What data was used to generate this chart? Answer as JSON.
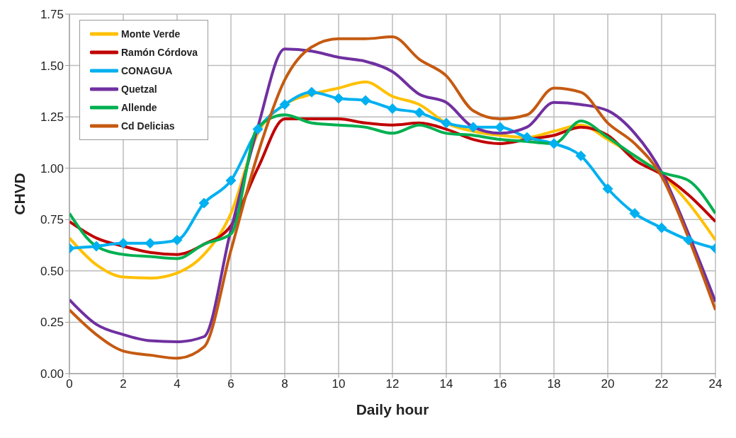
{
  "chart_data": {
    "type": "line",
    "xlabel": "Daily hour",
    "ylabel": "CHVD",
    "x": [
      0,
      1,
      2,
      3,
      4,
      5,
      6,
      7,
      8,
      9,
      10,
      11,
      12,
      13,
      14,
      15,
      16,
      17,
      18,
      19,
      20,
      21,
      22,
      23,
      24
    ],
    "xlim": [
      0,
      24
    ],
    "xticks": [
      0,
      2,
      4,
      6,
      8,
      10,
      12,
      14,
      16,
      18,
      20,
      22,
      24
    ],
    "ylim": [
      0,
      1.75
    ],
    "yticks": [
      {
        "value": 0,
        "label": "0.00"
      },
      {
        "value": 0.25,
        "label": "0.25"
      },
      {
        "value": 0.5,
        "label": "0.50"
      },
      {
        "value": 0.75,
        "label": "0.75"
      },
      {
        "value": 1,
        "label": "1.00"
      },
      {
        "value": 1.25,
        "label": "1.25"
      },
      {
        "value": 1.5,
        "label": "1.50"
      },
      {
        "value": 1.75,
        "label": "1.75"
      }
    ],
    "grid": true,
    "legend": "top left",
    "line_style": "solid",
    "series": [
      {
        "name": "Monte Verde",
        "color": "#ffc000",
        "marker": "none",
        "values": [
          0.66,
          0.53,
          0.47,
          0.465,
          0.49,
          0.58,
          0.78,
          1.17,
          1.31,
          1.36,
          1.39,
          1.42,
          1.35,
          1.31,
          1.22,
          1.18,
          1.16,
          1.15,
          1.18,
          1.21,
          1.14,
          1.06,
          0.97,
          0.83,
          0.65
        ]
      },
      {
        "name": "Ramón Córdova",
        "color": "#c00000",
        "marker": "none",
        "values": [
          0.74,
          0.66,
          0.62,
          0.59,
          0.58,
          0.63,
          0.72,
          1.0,
          1.24,
          1.24,
          1.24,
          1.22,
          1.21,
          1.22,
          1.19,
          1.14,
          1.12,
          1.14,
          1.16,
          1.2,
          1.16,
          1.04,
          0.97,
          0.87,
          0.74
        ]
      },
      {
        "name": "CONAGUA",
        "color": "#00b0f0",
        "marker": "diamond",
        "values": [
          0.61,
          0.62,
          0.635,
          0.635,
          0.65,
          0.83,
          0.94,
          1.19,
          1.31,
          1.37,
          1.34,
          1.33,
          1.29,
          1.27,
          1.22,
          1.2,
          1.2,
          1.15,
          1.12,
          1.06,
          0.9,
          0.78,
          0.71,
          0.65,
          0.61
        ]
      },
      {
        "name": "Quetzal",
        "color": "#7030a0",
        "marker": "none",
        "values": [
          0.36,
          0.24,
          0.19,
          0.16,
          0.155,
          0.18,
          0.7,
          1.2,
          1.58,
          1.57,
          1.54,
          1.52,
          1.47,
          1.36,
          1.32,
          1.2,
          1.17,
          1.2,
          1.32,
          1.31,
          1.28,
          1.17,
          0.98,
          0.68,
          0.35
        ]
      },
      {
        "name": "Allende",
        "color": "#00b050",
        "marker": "none",
        "values": [
          0.78,
          0.62,
          0.58,
          0.57,
          0.56,
          0.63,
          0.68,
          1.2,
          1.26,
          1.22,
          1.21,
          1.2,
          1.17,
          1.21,
          1.17,
          1.16,
          1.14,
          1.13,
          1.12,
          1.23,
          1.15,
          1.06,
          0.98,
          0.94,
          0.78
        ]
      },
      {
        "name": "Cd Delicias",
        "color": "#c55a11",
        "marker": "none",
        "values": [
          0.31,
          0.19,
          0.11,
          0.09,
          0.075,
          0.13,
          0.6,
          1.07,
          1.43,
          1.59,
          1.63,
          1.63,
          1.64,
          1.53,
          1.45,
          1.28,
          1.24,
          1.26,
          1.39,
          1.37,
          1.22,
          1.12,
          0.96,
          0.66,
          0.31
        ]
      }
    ]
  }
}
